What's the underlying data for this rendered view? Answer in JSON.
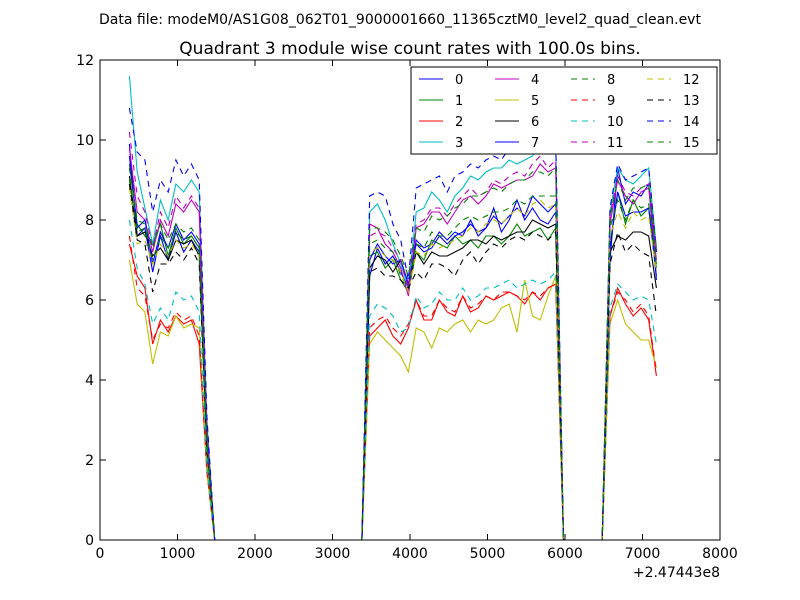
{
  "figure": {
    "suptitle": "Data file: modeM0/AS1G08_062T01_9000001660_11365cztM0_level2_quad_clean.evt"
  },
  "chart_data": {
    "type": "line",
    "title": "Quadrant 3 module wise count rates with 100.0s bins.",
    "xlabel": "",
    "ylabel": "",
    "x_offset_label": "+2.47443e8",
    "xlim": [
      0,
      8000
    ],
    "ylim": [
      0,
      12
    ],
    "xticks": [
      0,
      1000,
      2000,
      3000,
      4000,
      5000,
      6000,
      7000,
      8000
    ],
    "xtick_labels": [
      "0",
      "1000",
      "2000",
      "3000",
      "4000",
      "5000",
      "6000",
      "7000",
      "8000"
    ],
    "yticks": [
      0,
      2,
      4,
      6,
      8,
      10,
      12
    ],
    "ytick_labels": [
      "0",
      "2",
      "4",
      "6",
      "8",
      "10",
      "12"
    ],
    "grid": false,
    "legend": {
      "placement": "top-right",
      "columns": 4
    },
    "x": [
      380,
      480,
      580,
      680,
      780,
      880,
      980,
      1080,
      1180,
      1280,
      1380,
      1480,
      1580,
      3380,
      3480,
      3580,
      3680,
      3780,
      3880,
      3980,
      4080,
      4180,
      4280,
      4380,
      4480,
      4580,
      4680,
      4780,
      4880,
      4980,
      5080,
      5180,
      5280,
      5380,
      5480,
      5580,
      5680,
      5780,
      5880,
      5980,
      6080,
      6480,
      6580,
      6680,
      6780,
      6880,
      6980,
      7080,
      7180
    ],
    "series": [
      {
        "name": "0",
        "color": "#0000ff",
        "style": "solid",
        "values": [
          9.9,
          7.6,
          7.8,
          6.7,
          7.6,
          7.0,
          7.7,
          7.2,
          7.5,
          7.2,
          2.5,
          0,
          0,
          0,
          6.6,
          7.3,
          6.9,
          7.1,
          6.7,
          6.3,
          7.5,
          7.3,
          7.4,
          7.7,
          7.5,
          7.7,
          7.6,
          8.0,
          7.6,
          7.8,
          8.3,
          7.7,
          8.0,
          8.5,
          8.0,
          8.3,
          8.0,
          7.9,
          8.2,
          0,
          0,
          0,
          7.0,
          9.3,
          8.4,
          8.7,
          8.6,
          8.9,
          6.5
        ]
      },
      {
        "name": "1",
        "color": "#008000",
        "style": "solid",
        "values": [
          9.4,
          7.9,
          7.6,
          7.4,
          7.9,
          7.1,
          7.8,
          7.4,
          7.6,
          7.3,
          2.5,
          0,
          0,
          0,
          7.1,
          7.2,
          6.8,
          7.0,
          6.5,
          6.2,
          7.2,
          7.0,
          7.5,
          7.4,
          7.3,
          7.6,
          7.4,
          7.5,
          7.3,
          7.6,
          7.6,
          7.4,
          7.6,
          7.9,
          7.6,
          7.7,
          7.8,
          7.5,
          7.8,
          0,
          0,
          0,
          7.4,
          8.7,
          7.9,
          8.5,
          8.1,
          8.3,
          6.8
        ]
      },
      {
        "name": "2",
        "color": "#ff0000",
        "style": "solid",
        "values": [
          7.4,
          6.6,
          6.3,
          4.9,
          5.5,
          5.2,
          5.6,
          5.4,
          5.5,
          4.9,
          1.7,
          0,
          0,
          0,
          5.1,
          5.3,
          5.5,
          5.1,
          4.9,
          5.3,
          6.0,
          5.5,
          5.5,
          6.0,
          5.7,
          5.6,
          6.1,
          5.7,
          5.8,
          6.1,
          6.0,
          6.1,
          6.2,
          6.1,
          5.9,
          6.2,
          6.0,
          6.3,
          6.4,
          0,
          0,
          0,
          5.6,
          6.3,
          5.9,
          5.6,
          5.8,
          5.5,
          4.1
        ]
      },
      {
        "name": "3",
        "color": "#00bfbf",
        "style": "solid",
        "values": [
          11.6,
          9.2,
          8.3,
          7.4,
          8.5,
          8.0,
          8.9,
          8.7,
          9.0,
          8.7,
          3.0,
          0,
          0,
          0,
          8.2,
          8.4,
          8.0,
          7.4,
          6.9,
          6.3,
          8.2,
          8.3,
          8.7,
          8.5,
          8.2,
          8.6,
          8.8,
          9.1,
          9.0,
          9.2,
          9.3,
          9.3,
          9.5,
          9.4,
          9.5,
          9.6,
          9.9,
          9.7,
          9.9,
          0,
          0,
          0,
          8.2,
          9.3,
          9.0,
          8.9,
          9.1,
          9.3,
          7.3
        ]
      },
      {
        "name": "4",
        "color": "#bf00bf",
        "style": "solid",
        "values": [
          9.8,
          8.2,
          8.0,
          7.2,
          8.0,
          7.6,
          8.4,
          8.2,
          8.5,
          8.2,
          2.8,
          0,
          0,
          0,
          7.9,
          7.8,
          7.4,
          7.2,
          6.8,
          6.1,
          7.8,
          7.9,
          8.2,
          8.2,
          7.9,
          8.2,
          8.5,
          8.6,
          8.4,
          8.6,
          8.9,
          8.8,
          8.9,
          9.0,
          9.0,
          9.1,
          9.4,
          9.2,
          9.3,
          0,
          0,
          0,
          7.9,
          9.0,
          8.6,
          8.4,
          8.7,
          8.8,
          7.0
        ]
      },
      {
        "name": "5",
        "color": "#bfbf00",
        "style": "solid",
        "values": [
          7.0,
          5.9,
          5.7,
          4.4,
          5.2,
          5.1,
          5.6,
          5.3,
          5.4,
          5.3,
          1.7,
          0,
          0,
          0,
          4.9,
          5.2,
          5.0,
          4.8,
          4.6,
          4.2,
          5.3,
          5.2,
          4.8,
          5.3,
          5.2,
          5.4,
          5.5,
          5.2,
          5.5,
          5.4,
          5.5,
          5.8,
          5.9,
          5.2,
          6.5,
          5.6,
          5.5,
          6.1,
          6.6,
          0,
          0,
          0,
          5.4,
          6.0,
          5.4,
          5.2,
          5.0,
          5.0,
          4.3
        ]
      },
      {
        "name": "6",
        "color": "#000000",
        "style": "solid",
        "values": [
          9.1,
          7.6,
          7.7,
          7.1,
          7.3,
          7.0,
          7.5,
          7.4,
          7.5,
          7.1,
          2.3,
          0,
          0,
          0,
          6.8,
          7.1,
          7.0,
          6.7,
          7.0,
          6.4,
          7.2,
          6.9,
          7.2,
          7.1,
          7.1,
          7.2,
          7.3,
          7.5,
          7.5,
          7.4,
          7.6,
          7.5,
          7.6,
          7.7,
          7.7,
          8.0,
          7.9,
          7.8,
          7.9,
          0,
          0,
          0,
          7.2,
          7.6,
          7.5,
          7.7,
          7.7,
          7.6,
          6.3
        ]
      },
      {
        "name": "7",
        "color": "#0000ff",
        "style": "solid",
        "values": [
          9.6,
          7.8,
          8.0,
          6.9,
          7.7,
          7.3,
          7.9,
          7.5,
          7.7,
          7.4,
          2.5,
          0,
          0,
          0,
          7.0,
          7.4,
          7.1,
          6.9,
          7.0,
          6.4,
          7.4,
          7.2,
          7.3,
          7.6,
          7.4,
          7.6,
          7.7,
          7.9,
          7.7,
          7.8,
          8.1,
          7.9,
          8.1,
          8.3,
          8.1,
          8.6,
          8.4,
          8.2,
          8.4,
          0,
          0,
          0,
          7.3,
          8.7,
          8.1,
          8.2,
          8.2,
          8.3,
          6.6
        ]
      },
      {
        "name": "8",
        "color": "#008000",
        "style": "dashed",
        "values": [
          9.0,
          7.7,
          7.8,
          7.0,
          7.6,
          7.3,
          7.7,
          7.5,
          7.6,
          7.3,
          2.4,
          0,
          0,
          0,
          7.4,
          7.5,
          7.3,
          7.2,
          6.6,
          6.3,
          7.4,
          7.3,
          7.7,
          7.6,
          7.6,
          7.8,
          8.0,
          8.1,
          8.0,
          8.1,
          8.2,
          8.2,
          8.3,
          8.5,
          8.4,
          8.6,
          8.6,
          8.6,
          8.6,
          0,
          0,
          0,
          7.8,
          8.5,
          8.0,
          8.5,
          8.3,
          8.4,
          6.9
        ]
      },
      {
        "name": "9",
        "color": "#ff0000",
        "style": "dashed",
        "values": [
          7.6,
          6.3,
          6.1,
          5.0,
          5.4,
          5.3,
          5.7,
          5.5,
          5.6,
          5.1,
          1.7,
          0,
          0,
          0,
          5.3,
          5.5,
          5.6,
          5.3,
          5.1,
          5.4,
          6.0,
          5.6,
          5.6,
          6.0,
          5.8,
          5.7,
          6.1,
          5.8,
          5.9,
          6.1,
          6.0,
          6.2,
          6.2,
          6.1,
          6.0,
          6.2,
          6.1,
          6.3,
          6.4,
          0,
          0,
          0,
          5.6,
          6.2,
          6.0,
          5.7,
          5.9,
          5.6,
          4.2
        ]
      },
      {
        "name": "10",
        "color": "#00bfbf",
        "style": "dashed",
        "values": [
          8.0,
          6.8,
          6.4,
          5.4,
          5.8,
          5.5,
          6.2,
          6.0,
          6.1,
          5.7,
          1.9,
          0,
          0,
          0,
          5.6,
          5.9,
          5.8,
          5.6,
          5.2,
          5.3,
          6.1,
          5.8,
          5.9,
          6.2,
          6.0,
          6.0,
          6.3,
          6.0,
          6.1,
          6.3,
          6.3,
          6.4,
          6.5,
          6.3,
          6.4,
          6.5,
          6.4,
          6.5,
          6.7,
          0,
          0,
          0,
          5.8,
          6.4,
          6.2,
          6.0,
          6.1,
          6.0,
          4.9
        ]
      },
      {
        "name": "11",
        "color": "#bf00bf",
        "style": "dashed",
        "values": [
          10.2,
          8.6,
          8.2,
          7.3,
          8.2,
          7.8,
          8.6,
          8.3,
          8.6,
          8.3,
          2.8,
          0,
          0,
          0,
          7.6,
          7.7,
          7.6,
          7.3,
          7.0,
          6.3,
          7.9,
          8.0,
          8.3,
          8.3,
          8.1,
          8.4,
          8.6,
          8.8,
          8.6,
          8.7,
          9.0,
          8.9,
          9.1,
          9.2,
          9.1,
          9.4,
          9.6,
          9.3,
          9.5,
          0,
          0,
          0,
          8.1,
          9.1,
          8.7,
          8.6,
          8.8,
          8.9,
          7.2
        ]
      },
      {
        "name": "12",
        "color": "#bfbf00",
        "style": "dashed",
        "values": [
          8.8,
          7.4,
          7.5,
          6.9,
          7.4,
          7.1,
          7.5,
          7.3,
          7.4,
          7.1,
          2.3,
          0,
          0,
          0,
          7.2,
          7.3,
          7.1,
          7.0,
          6.7,
          6.2,
          7.2,
          7.1,
          7.4,
          7.3,
          7.4,
          7.5,
          7.6,
          7.8,
          7.7,
          7.9,
          8.0,
          7.9,
          8.1,
          8.3,
          8.1,
          8.4,
          8.5,
          8.3,
          8.4,
          0,
          0,
          0,
          7.6,
          8.2,
          7.8,
          8.2,
          8.0,
          8.1,
          6.7
        ]
      },
      {
        "name": "13",
        "color": "#000000",
        "style": "dashed",
        "values": [
          8.9,
          7.5,
          7.4,
          6.2,
          6.9,
          6.9,
          7.2,
          7.0,
          7.3,
          6.9,
          2.2,
          0,
          0,
          0,
          6.7,
          6.8,
          6.6,
          6.6,
          6.5,
          6.3,
          6.7,
          6.5,
          6.9,
          6.9,
          6.8,
          6.6,
          7.0,
          7.2,
          6.9,
          7.2,
          7.4,
          7.3,
          7.5,
          7.6,
          7.5,
          7.7,
          7.6,
          7.5,
          7.7,
          0,
          0,
          0,
          6.9,
          7.7,
          7.2,
          7.4,
          7.2,
          7.1,
          5.6
        ]
      },
      {
        "name": "14",
        "color": "#0000ff",
        "style": "dashed",
        "values": [
          10.8,
          9.7,
          9.5,
          8.2,
          9.0,
          8.7,
          9.5,
          9.1,
          9.4,
          9.0,
          3.1,
          0,
          0,
          0,
          8.6,
          8.7,
          8.6,
          7.9,
          7.5,
          6.5,
          8.8,
          8.9,
          9.0,
          9.1,
          8.7,
          9.1,
          9.2,
          9.4,
          9.3,
          9.5,
          9.6,
          9.5,
          9.8,
          9.8,
          9.7,
          10.1,
          10.6,
          9.9,
          10.0,
          0,
          0,
          0,
          8.3,
          9.4,
          9.0,
          9.1,
          9.2,
          9.3,
          7.2
        ]
      },
      {
        "name": "15",
        "color": "#008000",
        "style": "dashed",
        "values": [
          9.3,
          8.0,
          7.9,
          7.3,
          7.9,
          7.5,
          7.9,
          7.7,
          7.8,
          7.5,
          2.5,
          0,
          0,
          0,
          7.8,
          7.8,
          7.7,
          7.5,
          7.1,
          6.6,
          7.8,
          7.7,
          8.1,
          8.0,
          8.1,
          8.3,
          8.4,
          8.6,
          8.6,
          8.7,
          8.8,
          8.7,
          8.9,
          9.0,
          9.0,
          9.2,
          9.2,
          9.1,
          9.3,
          0,
          0,
          0,
          8.1,
          9.0,
          8.5,
          8.8,
          8.8,
          8.9,
          7.3
        ]
      }
    ]
  }
}
